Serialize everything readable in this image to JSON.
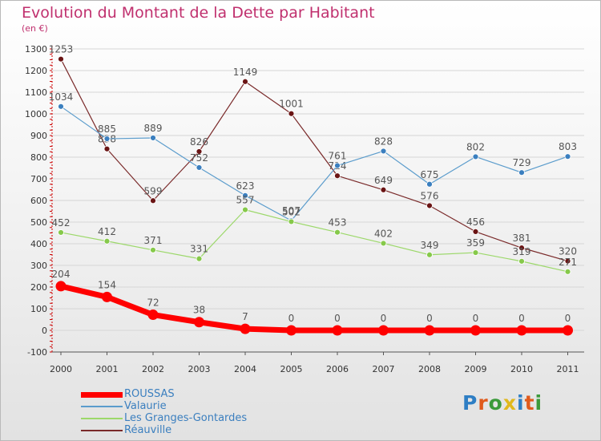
{
  "header": {
    "title": "Evolution du Montant de la Dette par Habitant",
    "subtitle": "(en €)"
  },
  "logo": {
    "text": "Proxiti",
    "colors": [
      "#2e7ec4",
      "#e05a1c",
      "#3b9a3a",
      "#e0b81c",
      "#2e7ec4",
      "#e05a1c",
      "#3b9a3a"
    ]
  },
  "chart_data": {
    "type": "line",
    "x": [
      "2000",
      "2001",
      "2002",
      "2003",
      "2004",
      "2005",
      "2006",
      "2007",
      "2008",
      "2009",
      "2010",
      "2011"
    ],
    "ylim": [
      -100,
      1300
    ],
    "yticks": [
      -100,
      0,
      100,
      200,
      300,
      400,
      500,
      600,
      700,
      800,
      900,
      1000,
      1100,
      1200,
      1300
    ],
    "grid": "horizontal",
    "legend_position": "bottom-left",
    "series": [
      {
        "name": "Réauville",
        "color": "#7a2a2a",
        "marker_color": "#6a1414",
        "width": 1.2,
        "values": [
          1253,
          838,
          599,
          826,
          1149,
          1001,
          714,
          649,
          576,
          456,
          381,
          320
        ],
        "labels": [
          "1253",
          "838",
          "599",
          "826",
          "1149",
          "1001",
          "714",
          "649",
          "576",
          "456",
          "381",
          "320"
        ]
      },
      {
        "name": "Valaurie",
        "color": "#5b9ccc",
        "marker_color": "#3b7fbf",
        "width": 1.2,
        "values": [
          1034,
          885,
          889,
          752,
          623,
          507,
          761,
          828,
          675,
          802,
          729,
          803
        ],
        "labels": [
          "1034",
          "885",
          "889",
          "752",
          "623",
          "507",
          "761",
          "828",
          "675",
          "802",
          "729",
          "803"
        ]
      },
      {
        "name": "Les Granges-Gontardes",
        "color": "#9cd86a",
        "marker_color": "#86c94a",
        "width": 1.2,
        "values": [
          452,
          412,
          371,
          331,
          557,
          502,
          453,
          402,
          349,
          359,
          319,
          271
        ],
        "labels": [
          "452",
          "412",
          "371",
          "331",
          "557",
          "502",
          "453",
          "402",
          "349",
          "359",
          "319",
          "271"
        ]
      },
      {
        "name": "ROUSSAS",
        "color": "#ff0000",
        "marker_color": "#ff0000",
        "width": 7,
        "values": [
          204,
          154,
          72,
          38,
          7,
          0,
          0,
          0,
          0,
          0,
          0,
          0
        ],
        "labels": [
          "204",
          "154",
          "72",
          "38",
          "7",
          "0",
          "0",
          "0",
          "0",
          "0",
          "0",
          "0"
        ]
      }
    ],
    "legend": [
      {
        "name": "ROUSSAS",
        "color": "#ff0000",
        "text_color": "#3b7fbf"
      },
      {
        "name": "Valaurie",
        "color": "#5b9ccc",
        "text_color": "#3b7fbf"
      },
      {
        "name": "Les Granges-Gontardes",
        "color": "#9cd86a",
        "text_color": "#3b7fbf"
      },
      {
        "name": "Réauville",
        "color": "#7a2a2a",
        "text_color": "#3b7fbf"
      }
    ]
  }
}
